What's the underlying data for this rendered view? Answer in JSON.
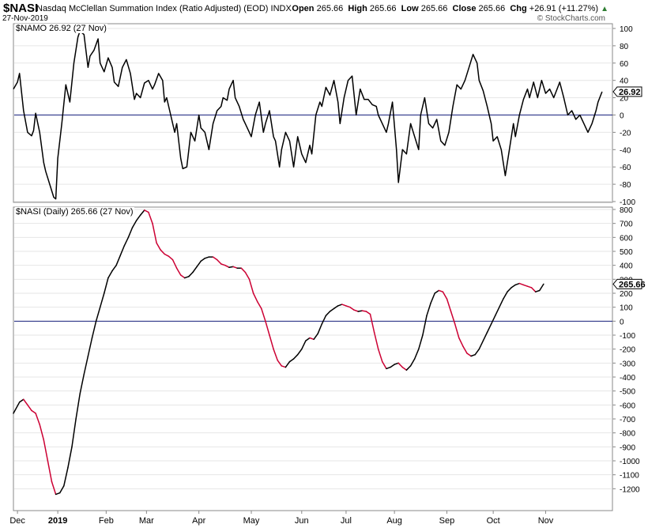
{
  "header": {
    "symbol": "$NASI",
    "description": "Nasdaq McClellan Summation Index (Ratio Adjusted) (EOD)",
    "exchange": "INDX",
    "date": "27-Nov-2019",
    "credit": "© StockCharts.com",
    "ohlc": {
      "open_label": "Open",
      "open": "265.66",
      "high_label": "High",
      "high": "265.66",
      "low_label": "Low",
      "low": "265.66",
      "close_label": "Close",
      "close": "265.66",
      "chg_label": "Chg",
      "chg": "+26.91 (+11.27%)",
      "chg_arrow": "▲"
    }
  },
  "colors": {
    "up": "#000000",
    "down": "#cc0033",
    "zero_line": "#1a237e",
    "grid": "#e6e6e6",
    "frame": "#888888"
  },
  "chart_data": [
    {
      "type": "line",
      "label": "$NAMO 26.92 (27 Nov)",
      "last_value_label": "26.92",
      "ylim": [
        -100,
        100
      ],
      "yticks": [
        100,
        80,
        60,
        40,
        20,
        0,
        -20,
        -40,
        -60,
        -80,
        -100
      ],
      "zero_line": 0,
      "x_range": [
        "2018-11-26",
        "2019-11-27"
      ],
      "values": [
        [
          0,
          30
        ],
        [
          2,
          38
        ],
        [
          3,
          48
        ],
        [
          5,
          5
        ],
        [
          7,
          -20
        ],
        [
          9,
          -24
        ],
        [
          10,
          -18
        ],
        [
          11,
          2
        ],
        [
          13,
          -20
        ],
        [
          15,
          -55
        ],
        [
          16,
          -65
        ],
        [
          18,
          -80
        ],
        [
          20,
          -95
        ],
        [
          21,
          -97
        ],
        [
          22,
          -50
        ],
        [
          24,
          -10
        ],
        [
          26,
          35
        ],
        [
          28,
          15
        ],
        [
          30,
          60
        ],
        [
          32,
          90
        ],
        [
          33,
          97
        ],
        [
          35,
          93
        ],
        [
          37,
          55
        ],
        [
          38,
          68
        ],
        [
          40,
          75
        ],
        [
          42,
          88
        ],
        [
          43,
          60
        ],
        [
          45,
          50
        ],
        [
          47,
          66
        ],
        [
          49,
          55
        ],
        [
          50,
          38
        ],
        [
          52,
          33
        ],
        [
          54,
          55
        ],
        [
          56,
          64
        ],
        [
          58,
          48
        ],
        [
          60,
          18
        ],
        [
          61,
          25
        ],
        [
          63,
          20
        ],
        [
          65,
          37
        ],
        [
          67,
          40
        ],
        [
          69,
          30
        ],
        [
          70,
          35
        ],
        [
          72,
          48
        ],
        [
          74,
          40
        ],
        [
          75,
          15
        ],
        [
          76,
          20
        ],
        [
          78,
          0
        ],
        [
          80,
          -20
        ],
        [
          81,
          -10
        ],
        [
          83,
          -50
        ],
        [
          84,
          -62
        ],
        [
          86,
          -60
        ],
        [
          88,
          -20
        ],
        [
          90,
          -30
        ],
        [
          92,
          0
        ],
        [
          93,
          -15
        ],
        [
          95,
          -20
        ],
        [
          97,
          -40
        ],
        [
          99,
          -10
        ],
        [
          101,
          5
        ],
        [
          103,
          10
        ],
        [
          104,
          20
        ],
        [
          106,
          17
        ],
        [
          107,
          30
        ],
        [
          109,
          40
        ],
        [
          110,
          20
        ],
        [
          112,
          10
        ],
        [
          114,
          -5
        ],
        [
          115,
          -10
        ],
        [
          117,
          -20
        ],
        [
          118,
          -25
        ],
        [
          120,
          0
        ],
        [
          122,
          15
        ],
        [
          124,
          -20
        ],
        [
          125,
          -10
        ],
        [
          127,
          5
        ],
        [
          129,
          -25
        ],
        [
          130,
          -30
        ],
        [
          132,
          -60
        ],
        [
          133,
          -40
        ],
        [
          135,
          -20
        ],
        [
          137,
          -30
        ],
        [
          139,
          -60
        ],
        [
          141,
          -25
        ],
        [
          143,
          -45
        ],
        [
          145,
          -55
        ],
        [
          147,
          -35
        ],
        [
          148,
          -45
        ],
        [
          150,
          0
        ],
        [
          152,
          15
        ],
        [
          153,
          10
        ],
        [
          155,
          32
        ],
        [
          157,
          23
        ],
        [
          159,
          40
        ],
        [
          161,
          15
        ],
        [
          162,
          -10
        ],
        [
          164,
          20
        ],
        [
          166,
          40
        ],
        [
          168,
          45
        ],
        [
          170,
          0
        ],
        [
          172,
          30
        ],
        [
          174,
          18
        ],
        [
          176,
          18
        ],
        [
          178,
          12
        ],
        [
          180,
          10
        ],
        [
          181,
          0
        ],
        [
          183,
          -10
        ],
        [
          185,
          -20
        ],
        [
          186,
          -10
        ],
        [
          188,
          15
        ],
        [
          190,
          -40
        ],
        [
          191,
          -78
        ],
        [
          193,
          -40
        ],
        [
          195,
          -45
        ],
        [
          197,
          -10
        ],
        [
          199,
          -25
        ],
        [
          201,
          -40
        ],
        [
          202,
          0
        ],
        [
          204,
          20
        ],
        [
          206,
          -10
        ],
        [
          208,
          -15
        ],
        [
          210,
          -5
        ],
        [
          212,
          -30
        ],
        [
          214,
          -35
        ],
        [
          216,
          -20
        ],
        [
          218,
          10
        ],
        [
          220,
          35
        ],
        [
          222,
          30
        ],
        [
          224,
          40
        ],
        [
          226,
          55
        ],
        [
          228,
          70
        ],
        [
          230,
          60
        ],
        [
          231,
          40
        ],
        [
          233,
          28
        ],
        [
          235,
          10
        ],
        [
          237,
          -10
        ],
        [
          238,
          -30
        ],
        [
          240,
          -25
        ],
        [
          242,
          -40
        ],
        [
          244,
          -70
        ],
        [
          246,
          -40
        ],
        [
          248,
          -10
        ],
        [
          249,
          -25
        ],
        [
          251,
          0
        ],
        [
          253,
          18
        ],
        [
          255,
          30
        ],
        [
          256,
          20
        ],
        [
          258,
          38
        ],
        [
          260,
          20
        ],
        [
          262,
          40
        ],
        [
          264,
          25
        ],
        [
          266,
          30
        ],
        [
          268,
          20
        ],
        [
          270,
          32
        ],
        [
          271,
          38
        ],
        [
          273,
          20
        ],
        [
          275,
          0
        ],
        [
          277,
          5
        ],
        [
          279,
          -5
        ],
        [
          281,
          0
        ],
        [
          283,
          -10
        ],
        [
          285,
          -20
        ],
        [
          287,
          -10
        ],
        [
          289,
          5
        ],
        [
          290,
          15
        ],
        [
          292,
          26.92
        ]
      ]
    },
    {
      "type": "line",
      "label": "$NASI (Daily) 265.66 (27 Nov)",
      "last_value_label": "265.66",
      "ylim": [
        -1300,
        800
      ],
      "yticks": [
        800,
        700,
        600,
        500,
        400,
        300,
        200,
        100,
        0,
        -100,
        -200,
        -300,
        -400,
        -500,
        -600,
        -700,
        -800,
        -900,
        -1000,
        -1100,
        -1200
      ],
      "zero_line": 0,
      "x_tick_labels": [
        {
          "label": "Dec",
          "pos": 2
        },
        {
          "label": "2019",
          "pos": 22,
          "bold": true
        },
        {
          "label": "Feb",
          "pos": 46
        },
        {
          "label": "Mar",
          "pos": 66
        },
        {
          "label": "Apr",
          "pos": 92
        },
        {
          "label": "May",
          "pos": 118
        },
        {
          "label": "Jun",
          "pos": 143
        },
        {
          "label": "Jul",
          "pos": 165
        },
        {
          "label": "Aug",
          "pos": 189
        },
        {
          "label": "Sep",
          "pos": 215
        },
        {
          "label": "Oct",
          "pos": 238
        },
        {
          "label": "Nov",
          "pos": 264
        }
      ],
      "values": [
        [
          0,
          -660
        ],
        [
          3,
          -580
        ],
        [
          5,
          -560
        ],
        [
          7,
          -600
        ],
        [
          9,
          -640
        ],
        [
          11,
          -660
        ],
        [
          13,
          -740
        ],
        [
          15,
          -850
        ],
        [
          17,
          -1000
        ],
        [
          19,
          -1150
        ],
        [
          21,
          -1240
        ],
        [
          23,
          -1230
        ],
        [
          25,
          -1180
        ],
        [
          27,
          -1050
        ],
        [
          29,
          -900
        ],
        [
          31,
          -700
        ],
        [
          33,
          -520
        ],
        [
          35,
          -380
        ],
        [
          37,
          -250
        ],
        [
          39,
          -120
        ],
        [
          41,
          0
        ],
        [
          43,
          100
        ],
        [
          45,
          200
        ],
        [
          47,
          310
        ],
        [
          49,
          360
        ],
        [
          51,
          400
        ],
        [
          53,
          470
        ],
        [
          55,
          540
        ],
        [
          57,
          600
        ],
        [
          59,
          670
        ],
        [
          61,
          720
        ],
        [
          63,
          760
        ],
        [
          65,
          795
        ],
        [
          67,
          780
        ],
        [
          69,
          700
        ],
        [
          71,
          560
        ],
        [
          73,
          510
        ],
        [
          75,
          480
        ],
        [
          77,
          465
        ],
        [
          79,
          440
        ],
        [
          81,
          380
        ],
        [
          83,
          330
        ],
        [
          85,
          310
        ],
        [
          87,
          320
        ],
        [
          89,
          350
        ],
        [
          91,
          390
        ],
        [
          93,
          430
        ],
        [
          95,
          450
        ],
        [
          97,
          460
        ],
        [
          99,
          460
        ],
        [
          101,
          440
        ],
        [
          103,
          410
        ],
        [
          105,
          400
        ],
        [
          107,
          385
        ],
        [
          109,
          390
        ],
        [
          111,
          380
        ],
        [
          113,
          380
        ],
        [
          115,
          350
        ],
        [
          117,
          300
        ],
        [
          119,
          200
        ],
        [
          121,
          140
        ],
        [
          123,
          90
        ],
        [
          125,
          0
        ],
        [
          127,
          -100
        ],
        [
          129,
          -200
        ],
        [
          131,
          -280
        ],
        [
          133,
          -320
        ],
        [
          135,
          -330
        ],
        [
          137,
          -290
        ],
        [
          139,
          -270
        ],
        [
          141,
          -240
        ],
        [
          143,
          -200
        ],
        [
          145,
          -140
        ],
        [
          147,
          -120
        ],
        [
          149,
          -130
        ],
        [
          151,
          -90
        ],
        [
          153,
          -20
        ],
        [
          155,
          40
        ],
        [
          157,
          70
        ],
        [
          159,
          90
        ],
        [
          161,
          110
        ],
        [
          163,
          120
        ],
        [
          165,
          110
        ],
        [
          167,
          100
        ],
        [
          169,
          80
        ],
        [
          171,
          70
        ],
        [
          173,
          75
        ],
        [
          175,
          70
        ],
        [
          177,
          50
        ],
        [
          179,
          -80
        ],
        [
          181,
          -200
        ],
        [
          183,
          -290
        ],
        [
          185,
          -340
        ],
        [
          187,
          -330
        ],
        [
          189,
          -310
        ],
        [
          191,
          -300
        ],
        [
          193,
          -330
        ],
        [
          195,
          -350
        ],
        [
          197,
          -320
        ],
        [
          199,
          -270
        ],
        [
          201,
          -200
        ],
        [
          203,
          -100
        ],
        [
          205,
          40
        ],
        [
          207,
          130
        ],
        [
          209,
          200
        ],
        [
          211,
          220
        ],
        [
          213,
          210
        ],
        [
          215,
          160
        ],
        [
          217,
          70
        ],
        [
          219,
          -20
        ],
        [
          221,
          -120
        ],
        [
          223,
          -180
        ],
        [
          225,
          -230
        ],
        [
          227,
          -250
        ],
        [
          229,
          -240
        ],
        [
          231,
          -200
        ],
        [
          233,
          -140
        ],
        [
          235,
          -80
        ],
        [
          237,
          -20
        ],
        [
          239,
          40
        ],
        [
          241,
          100
        ],
        [
          243,
          160
        ],
        [
          245,
          210
        ],
        [
          247,
          240
        ],
        [
          249,
          260
        ],
        [
          251,
          270
        ],
        [
          253,
          260
        ],
        [
          255,
          250
        ],
        [
          257,
          240
        ],
        [
          259,
          210
        ],
        [
          261,
          220
        ],
        [
          263,
          265.66
        ]
      ]
    }
  ]
}
